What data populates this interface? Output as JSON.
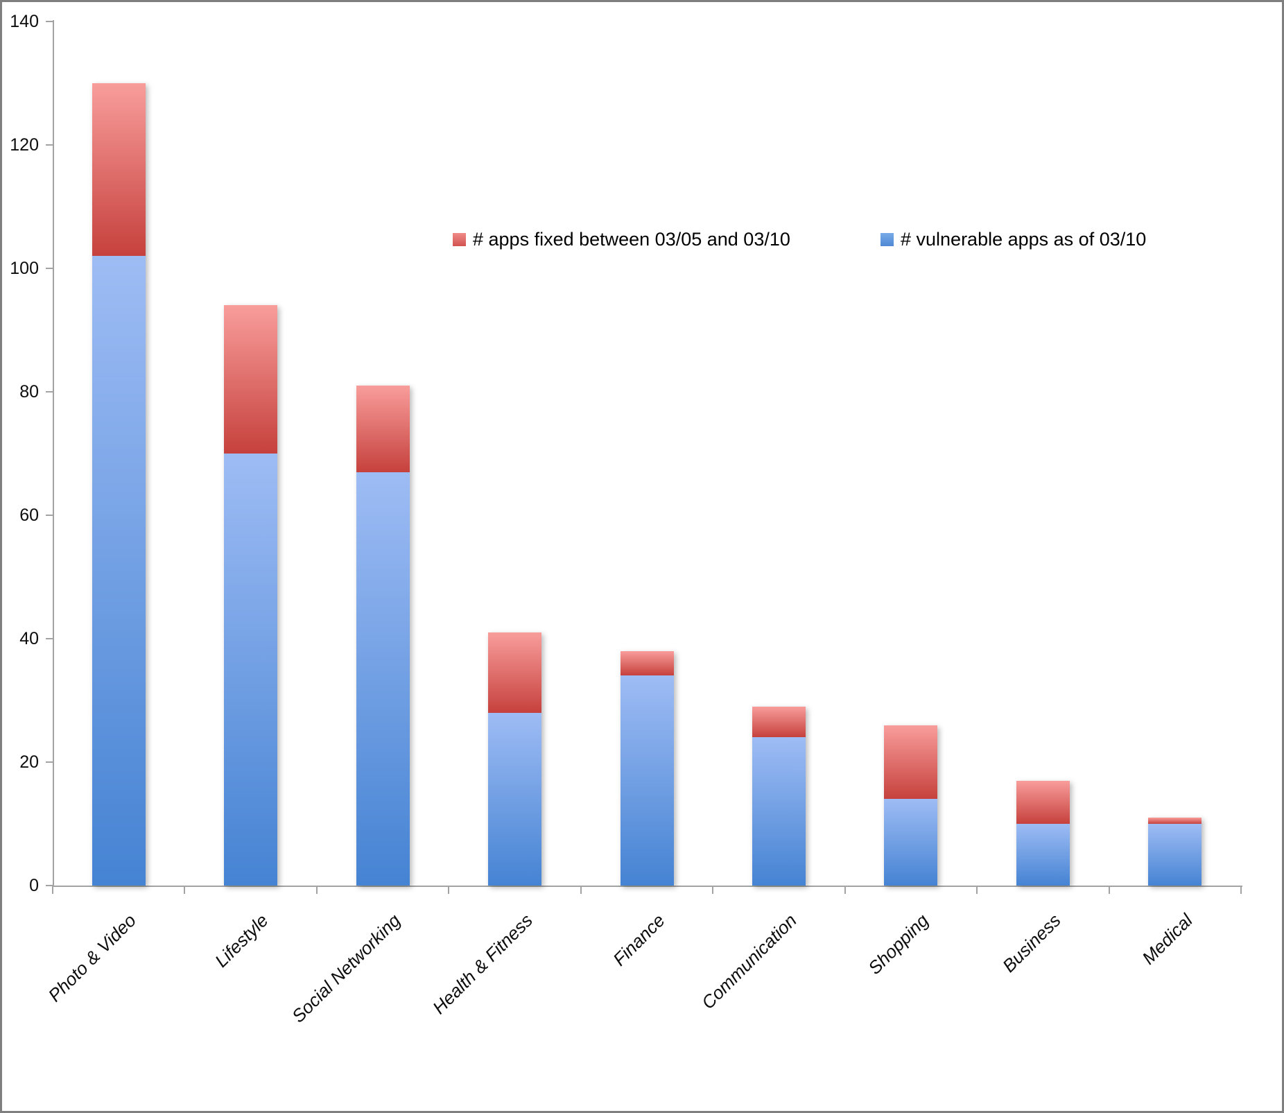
{
  "chart_data": {
    "type": "bar",
    "stacked": true,
    "title": "",
    "xlabel": "",
    "ylabel": "",
    "categories": [
      "Photo & Video",
      "Lifestyle",
      "Social Networking",
      "Health & Fitness",
      "Finance",
      "Communication",
      "Shopping",
      "Business",
      "Medical"
    ],
    "series": [
      {
        "name": "# vulnerable apps as of 03/10",
        "role": "vulnerable",
        "values": [
          102,
          70,
          67,
          28,
          34,
          24,
          14,
          10,
          10
        ],
        "color_top": "#9EBCF4",
        "color_bottom": "#4583D3"
      },
      {
        "name": "# apps fixed between 03/05 and 03/10",
        "role": "fixed",
        "values": [
          28,
          24,
          14,
          13,
          4,
          5,
          12,
          7,
          1
        ],
        "color_top": "#F89D9B",
        "color_bottom": "#C6413D"
      }
    ],
    "totals": [
      130,
      94,
      81,
      41,
      38,
      29,
      26,
      17,
      11
    ],
    "ylim": [
      0,
      140
    ],
    "yticks": [
      0,
      20,
      40,
      60,
      80,
      100,
      120,
      140
    ],
    "grid": false,
    "legend_position": "inside-top",
    "legend_order": [
      "fixed",
      "vulnerable"
    ],
    "axis_color": "#a3a3a3",
    "text_color": "#0d0d0d"
  }
}
